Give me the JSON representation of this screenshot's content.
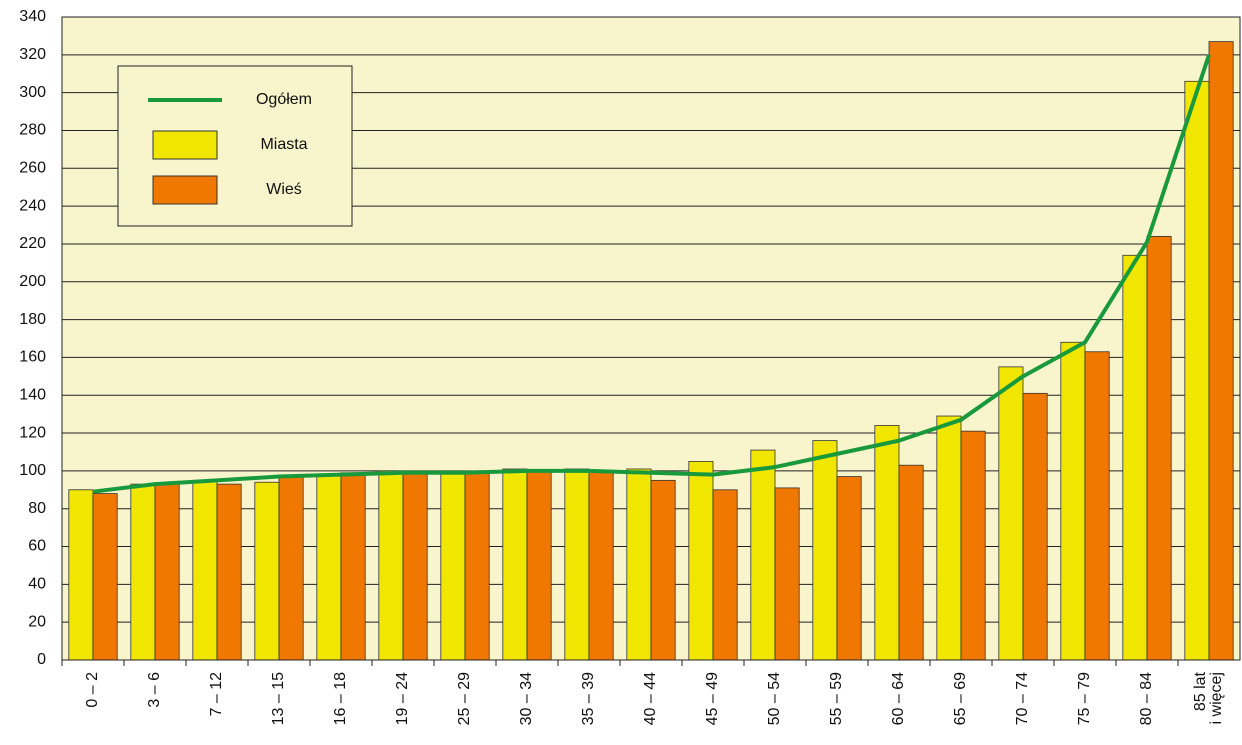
{
  "chart_data": {
    "type": "bar",
    "categories": [
      "0 – 2",
      "3 – 6",
      "7 – 12",
      "13 – 15",
      "16 – 18",
      "19 – 24",
      "25 – 29",
      "30 – 34",
      "35 – 39",
      "40 – 44",
      "45 – 49",
      "50 – 54",
      "55 – 59",
      "60 – 64",
      "65 – 69",
      "70 – 74",
      "75 – 79",
      "80 – 84",
      "85 lat\ni więcej"
    ],
    "series": [
      {
        "name": "Ogółem",
        "type": "line",
        "color": "#189a3c",
        "values": [
          89,
          93,
          95,
          97,
          98,
          99,
          99,
          100,
          100,
          99,
          98,
          102,
          109,
          116,
          127,
          150,
          168,
          221,
          320
        ]
      },
      {
        "name": "Miasta",
        "type": "bar",
        "color": "#f0e600",
        "values": [
          90,
          93,
          95,
          94,
          98,
          100,
          100,
          101,
          101,
          101,
          105,
          111,
          116,
          124,
          129,
          155,
          168,
          214,
          306
        ]
      },
      {
        "name": "Wieś",
        "type": "bar",
        "color": "#f07800",
        "values": [
          88,
          93,
          93,
          97,
          99,
          99,
          99,
          100,
          100,
          95,
          90,
          91,
          97,
          103,
          121,
          141,
          163,
          224,
          327
        ]
      }
    ],
    "ylim": [
      0,
      340
    ],
    "yticks": [
      0,
      20,
      40,
      60,
      80,
      100,
      120,
      140,
      160,
      180,
      200,
      220,
      240,
      260,
      280,
      300,
      320,
      340
    ],
    "grid": true
  }
}
